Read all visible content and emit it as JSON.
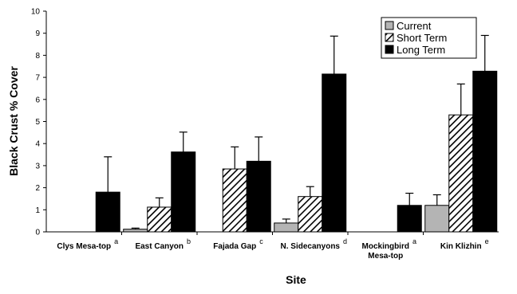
{
  "chart_data": {
    "type": "bar",
    "ylabel": "Black Crust  % Cover",
    "xlabel": "Site",
    "ylim": [
      0,
      10
    ],
    "yticks": [
      "0",
      "1",
      "2",
      "3",
      "4",
      "5",
      "6",
      "7",
      "8",
      "9",
      "10"
    ],
    "grid": false,
    "legend_position": "top-right",
    "categories": [
      {
        "label": "Clys Mesa-top",
        "label2": "",
        "sup": "a"
      },
      {
        "label": "East Canyon",
        "label2": "",
        "sup": "b"
      },
      {
        "label": "Fajada Gap",
        "label2": "",
        "sup": "c"
      },
      {
        "label": "N. Sidecanyons",
        "label2": "",
        "sup": "d"
      },
      {
        "label": "Mockingbird",
        "label2": "Mesa-top",
        "sup": "a"
      },
      {
        "label": "Kin Klizhin",
        "label2": "",
        "sup": "e"
      }
    ],
    "series": [
      {
        "name": "Current",
        "color": "#b4b4b4",
        "pattern": "solid",
        "values": [
          0,
          0.12,
          0,
          0.4,
          0,
          1.2
        ],
        "errors": [
          0,
          0.05,
          0,
          0.18,
          0,
          0.48
        ]
      },
      {
        "name": "Short Term",
        "color": "#ffffff",
        "pattern": "hatch",
        "values": [
          0,
          1.12,
          2.85,
          1.6,
          0,
          5.3
        ],
        "errors": [
          0,
          0.42,
          1.0,
          0.45,
          0,
          1.4
        ]
      },
      {
        "name": "Long Term",
        "color": "#000000",
        "pattern": "solid",
        "values": [
          1.8,
          3.62,
          3.2,
          7.15,
          1.2,
          7.28
        ],
        "errors": [
          1.6,
          0.9,
          1.1,
          1.72,
          0.55,
          1.62
        ]
      }
    ]
  }
}
